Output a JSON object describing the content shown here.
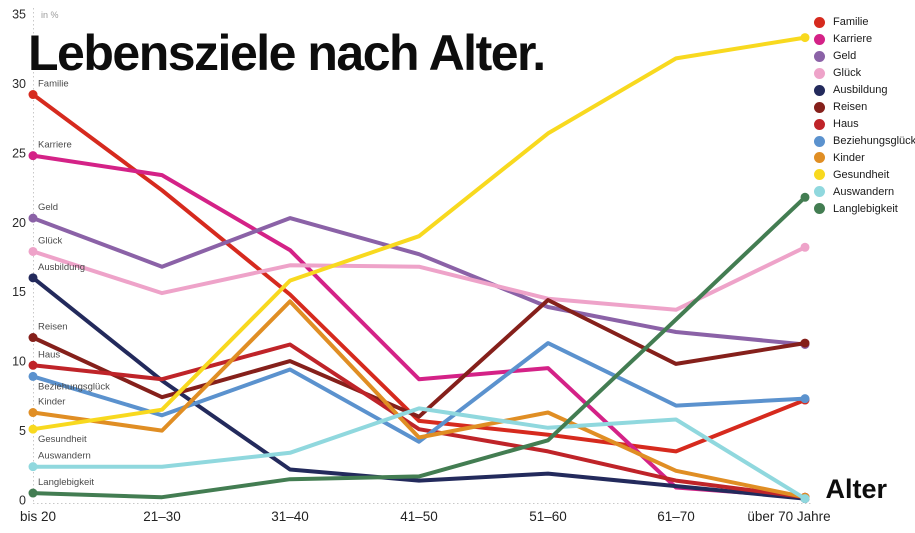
{
  "title": "Lebensziele nach Alter.",
  "axis_note": "in %",
  "x_axis_title": "Alter",
  "chart_data": {
    "type": "line",
    "title": "Lebensziele nach Alter.",
    "xlabel": "Alter",
    "ylabel": "in %",
    "ylim": [
      0,
      35
    ],
    "y_ticks": [
      0,
      5,
      10,
      15,
      20,
      25,
      30,
      35
    ],
    "grid": "off",
    "legend_position": "top-right",
    "categories": [
      "bis 20",
      "21–30",
      "31–40",
      "41–50",
      "51–60",
      "61–70",
      "über 70 Jahre"
    ],
    "series": [
      {
        "name": "Familie",
        "color": "#d62a1e",
        "label_pos": "above",
        "values": [
          29.2,
          22.3,
          14.8,
          5.7,
          4.7,
          3.5,
          7.2
        ]
      },
      {
        "name": "Karriere",
        "color": "#d42287",
        "label_pos": "above",
        "values": [
          24.8,
          23.4,
          18.0,
          8.7,
          9.5,
          0.9,
          0.2
        ]
      },
      {
        "name": "Geld",
        "color": "#8b62a7",
        "label_pos": "above",
        "values": [
          20.3,
          16.8,
          20.3,
          17.7,
          13.9,
          12.1,
          11.2
        ]
      },
      {
        "name": "Glück",
        "color": "#eea3c9",
        "label_pos": "above",
        "values": [
          17.9,
          14.9,
          16.9,
          16.8,
          14.5,
          13.7,
          18.2
        ]
      },
      {
        "name": "Ausbildung",
        "color": "#232a5c",
        "label_pos": "above",
        "values": [
          16.0,
          8.6,
          2.2,
          1.4,
          1.9,
          1.0,
          0.1
        ]
      },
      {
        "name": "Reisen",
        "color": "#85201b",
        "label_pos": "above",
        "values": [
          11.7,
          7.4,
          10.0,
          6.0,
          14.4,
          9.8,
          11.3
        ]
      },
      {
        "name": "Haus",
        "color": "#bf2429",
        "label_pos": "above",
        "values": [
          9.7,
          8.7,
          11.2,
          5.1,
          3.5,
          1.4,
          0.2
        ]
      },
      {
        "name": "Beziehungsglück",
        "color": "#5b92ce",
        "label_pos": "below",
        "values": [
          8.9,
          6.1,
          9.4,
          4.2,
          11.3,
          6.8,
          7.3
        ]
      },
      {
        "name": "Kinder",
        "color": "#e08e24",
        "label_pos": "above",
        "values": [
          6.3,
          5.0,
          14.3,
          4.5,
          6.3,
          2.1,
          0.2
        ]
      },
      {
        "name": "Gesundheit",
        "color": "#f8d91f",
        "label_pos": "below",
        "values": [
          5.1,
          6.5,
          15.8,
          19.0,
          26.4,
          31.8,
          33.3
        ]
      },
      {
        "name": "Auswandern",
        "color": "#90d8de",
        "label_pos": "above",
        "values": [
          2.4,
          2.4,
          3.4,
          6.6,
          5.2,
          5.8,
          0.1
        ]
      },
      {
        "name": "Langlebigkeit",
        "color": "#437d52",
        "label_pos": "above",
        "values": [
          0.5,
          0.2,
          1.5,
          1.7,
          4.3,
          13.0,
          21.8
        ]
      }
    ]
  }
}
